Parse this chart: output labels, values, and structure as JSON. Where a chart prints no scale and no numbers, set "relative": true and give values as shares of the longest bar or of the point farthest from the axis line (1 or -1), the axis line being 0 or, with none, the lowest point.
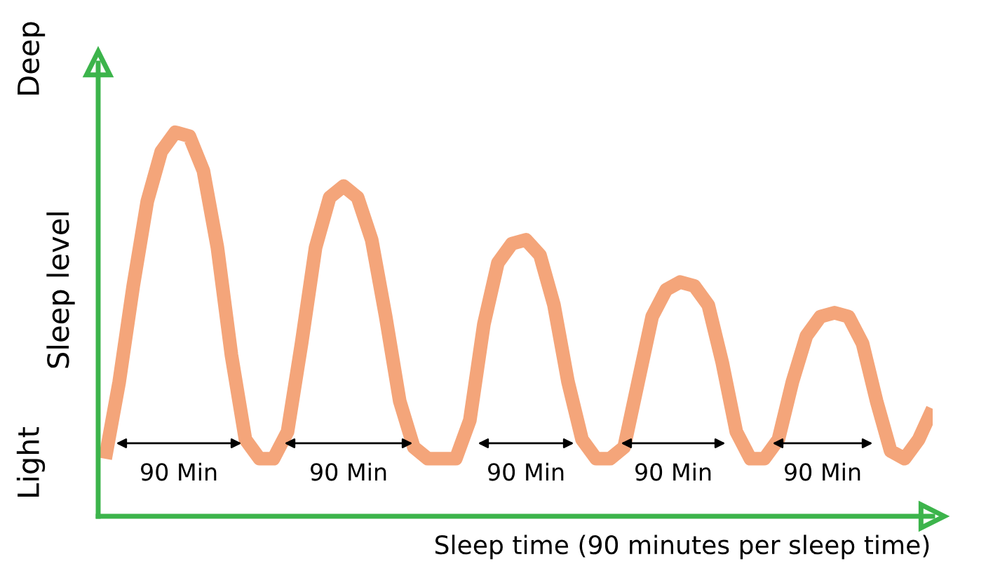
{
  "chart_data": {
    "type": "line",
    "relative": true,
    "xlabel": "Sleep time (90 minutes per sleep time)",
    "ylabel": "Sleep level",
    "annotations": [
      "Deep",
      "Light",
      "90 Min",
      "90 Min",
      "90 Min",
      "90 Min",
      "90 Min"
    ],
    "categories": [
      null,
      null,
      null,
      null,
      null,
      null,
      null,
      null,
      null,
      null,
      null,
      null,
      null,
      null,
      null,
      null,
      null,
      null,
      null,
      null,
      null,
      null,
      null,
      null,
      null,
      null,
      null,
      null,
      null,
      null,
      null,
      null,
      null,
      null,
      null,
      null,
      null,
      null,
      null,
      null,
      null,
      null,
      null,
      null,
      null,
      null,
      null,
      null,
      null,
      null,
      null,
      null,
      null,
      null,
      null,
      null,
      null,
      null,
      null,
      null
    ],
    "series": [
      {
        "color": "#f4a57a",
        "values": [
          0.15,
          0.35,
          0.6,
          0.82,
          0.95,
          1.0,
          0.99,
          0.9,
          0.7,
          0.42,
          0.2,
          0.15,
          0.15,
          0.22,
          0.45,
          0.7,
          0.83,
          0.86,
          0.83,
          0.72,
          0.52,
          0.3,
          0.18,
          0.15,
          0.15,
          0.15,
          0.25,
          0.5,
          0.66,
          0.71,
          0.72,
          0.68,
          0.55,
          0.35,
          0.2,
          0.15,
          0.15,
          0.18,
          0.35,
          0.52,
          0.59,
          0.61,
          0.6,
          0.55,
          0.4,
          0.22,
          0.15,
          0.15,
          0.2,
          0.35,
          0.47,
          0.52,
          0.53,
          0.52,
          0.45,
          0.3,
          0.17,
          0.15,
          0.2,
          0.28
        ]
      }
    ],
    "grid": false,
    "legend": false,
    "marker": "none",
    "line_style": "solid"
  }
}
